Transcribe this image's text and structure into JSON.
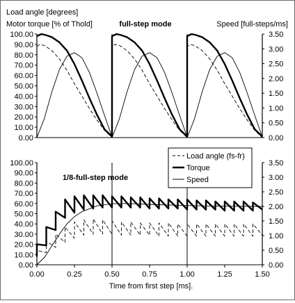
{
  "chart_data": {
    "type": "line",
    "left_label_1": "Load angle [degrees]",
    "left_label_2": "Motor torque [% of Thold]",
    "right_label": "Speed [full-steps/ms]",
    "xlabel": "Time from first step [ms].",
    "x_ticks": [
      "0.00",
      "0.25",
      "0.50",
      "0.75",
      "1.00",
      "1.25",
      "1.50"
    ],
    "xlim": [
      0,
      1.5
    ],
    "grid": false,
    "legend": {
      "placement": "upper-right of lower panel",
      "entries": [
        "Load angle (fs-fr)",
        "Torque",
        "Speed"
      ]
    },
    "panels": [
      {
        "mode_label": "full-step mode",
        "left_ticks": [
          "100.00",
          "90.00",
          "80.00",
          "70.00",
          "60.00",
          "50.00",
          "40.00",
          "30.00",
          "20.00",
          "10.00",
          "0.00"
        ],
        "right_ticks": [
          "3.50",
          "3.00",
          "2.50",
          "2.00",
          "1.50",
          "1.00",
          "0.50",
          "0.00"
        ],
        "ylim_left": [
          0,
          100
        ],
        "ylim_right": [
          0,
          3.5
        ],
        "vertical_lines_at": [
          0.5,
          1.0
        ],
        "series": [
          {
            "name": "Load angle (fs-fr)",
            "style": "dashed",
            "x": [
              0,
              0.02,
              0.05,
              0.1,
              0.15,
              0.2,
              0.25,
              0.3,
              0.35,
              0.4,
              0.45,
              0.5,
              0.5,
              0.52,
              0.55,
              0.6,
              0.65,
              0.7,
              0.75,
              0.8,
              0.85,
              0.9,
              0.95,
              1.0,
              1.0,
              1.02,
              1.05,
              1.1,
              1.15,
              1.2,
              1.25,
              1.3,
              1.35,
              1.4,
              1.45,
              1.5
            ],
            "y": [
              88,
              90,
              89,
              84,
              76,
              65,
              52,
              40,
              28,
              17,
              7,
              0,
              88,
              90,
              89,
              84,
              76,
              65,
              52,
              40,
              28,
              17,
              7,
              0,
              88,
              90,
              89,
              84,
              76,
              65,
              52,
              40,
              28,
              17,
              7,
              0
            ]
          },
          {
            "name": "Torque",
            "style": "thick",
            "x": [
              0,
              0.03,
              0.06,
              0.1,
              0.15,
              0.2,
              0.25,
              0.3,
              0.35,
              0.4,
              0.45,
              0.5,
              0.5,
              0.53,
              0.56,
              0.6,
              0.65,
              0.7,
              0.75,
              0.8,
              0.85,
              0.9,
              0.95,
              1.0,
              1.0,
              1.03,
              1.06,
              1.1,
              1.15,
              1.2,
              1.25,
              1.3,
              1.35,
              1.4,
              1.45,
              1.5
            ],
            "y": [
              98,
              100,
              99,
              97,
              92,
              84,
              71,
              55,
              38,
              22,
              8,
              1,
              98,
              100,
              99,
              97,
              92,
              84,
              71,
              55,
              38,
              22,
              8,
              1,
              98,
              100,
              99,
              97,
              92,
              84,
              71,
              55,
              38,
              22,
              8,
              1
            ]
          },
          {
            "name": "Speed",
            "style": "thin",
            "axis": "right",
            "x": [
              0,
              0.05,
              0.1,
              0.15,
              0.2,
              0.25,
              0.3,
              0.35,
              0.4,
              0.45,
              0.5,
              0.5,
              0.55,
              0.6,
              0.65,
              0.7,
              0.75,
              0.8,
              0.85,
              0.9,
              0.95,
              1.0,
              1.0,
              1.05,
              1.1,
              1.15,
              1.2,
              1.25,
              1.3,
              1.35,
              1.4,
              1.45,
              1.5
            ],
            "y": [
              0,
              0.65,
              1.55,
              2.3,
              2.75,
              2.87,
              2.7,
              2.2,
              1.5,
              0.75,
              0.02,
              0,
              0.65,
              1.55,
              2.3,
              2.75,
              2.87,
              2.7,
              2.2,
              1.5,
              0.75,
              0.02,
              0,
              0.65,
              1.55,
              2.3,
              2.75,
              2.87,
              2.7,
              2.2,
              1.5,
              0.75,
              0.02
            ]
          }
        ]
      },
      {
        "mode_label": "1/8-full-step mode",
        "left_ticks": [
          "100.00",
          "90.00",
          "80.00",
          "70.00",
          "60.00",
          "50.00",
          "40.00",
          "30.00",
          "20.00",
          "10.00",
          "0.00"
        ],
        "right_ticks": [
          "3.50",
          "3.00",
          "2.50",
          "2.00",
          "1.50",
          "1.00",
          "0.50",
          "0.00"
        ],
        "ylim_left": [
          0,
          100
        ],
        "ylim_right": [
          0,
          3.5
        ],
        "vertical_lines_at": [
          0.5,
          1.0
        ],
        "series": [
          {
            "name": "Load angle (fs-fr)",
            "style": "dashed",
            "sawtooth": true,
            "x": [
              0.0,
              0.0625,
              0.125,
              0.1875,
              0.25,
              0.3125,
              0.375,
              0.4375,
              0.5,
              0.5625,
              0.625,
              0.6875,
              0.75,
              0.8125,
              0.875,
              0.9375,
              1.0,
              1.0625,
              1.125,
              1.1875,
              1.25,
              1.3125,
              1.375,
              1.4375
            ],
            "lo": [
              5,
              12,
              17,
              22,
              26,
              29,
              30,
              30,
              30,
              29,
              29,
              29,
              29,
              28,
              28,
              28,
              28,
              28,
              28,
              28,
              28,
              28,
              28,
              28
            ],
            "hi": [
              14,
              23,
              30,
              37,
              42,
              44,
              45,
              44,
              43,
              42,
              42,
              41,
              41,
              41,
              41,
              40,
              40,
              40,
              40,
              40,
              40,
              40,
              40,
              40
            ],
            "end": 29
          },
          {
            "name": "Torque",
            "style": "thick",
            "sawtooth": true,
            "x": [
              0.0,
              0.0625,
              0.125,
              0.1875,
              0.25,
              0.3125,
              0.375,
              0.4375,
              0.5,
              0.5625,
              0.625,
              0.6875,
              0.75,
              0.8125,
              0.875,
              0.9375,
              1.0,
              1.0625,
              1.125,
              1.1875,
              1.25,
              1.3125,
              1.375,
              1.4375
            ],
            "lo": [
              8,
              19,
              34,
              46,
              51,
              54,
              55,
              56,
              56,
              56,
              56,
              56,
              55,
              55,
              55,
              55,
              54,
              54,
              54,
              54,
              53,
              53,
              53,
              53
            ],
            "hi": [
              20,
              37,
              52,
              64,
              67,
              68,
              68,
              68,
              67,
              67,
              66,
              66,
              65,
              65,
              64,
              64,
              64,
              63,
              63,
              62,
              62,
              62,
              62,
              61
            ],
            "end": 54
          },
          {
            "name": "Speed",
            "style": "thin",
            "axis": "right",
            "x": [
              0,
              0.05,
              0.1,
              0.15,
              0.2,
              0.25,
              0.3,
              0.4,
              0.5,
              0.6,
              0.8,
              1.0,
              1.2,
              1.5
            ],
            "y": [
              0,
              0.25,
              0.65,
              1.05,
              1.4,
              1.65,
              1.82,
              2.02,
              2.09,
              2.1,
              2.06,
              2.03,
              2.01,
              2.0
            ]
          }
        ]
      }
    ]
  }
}
